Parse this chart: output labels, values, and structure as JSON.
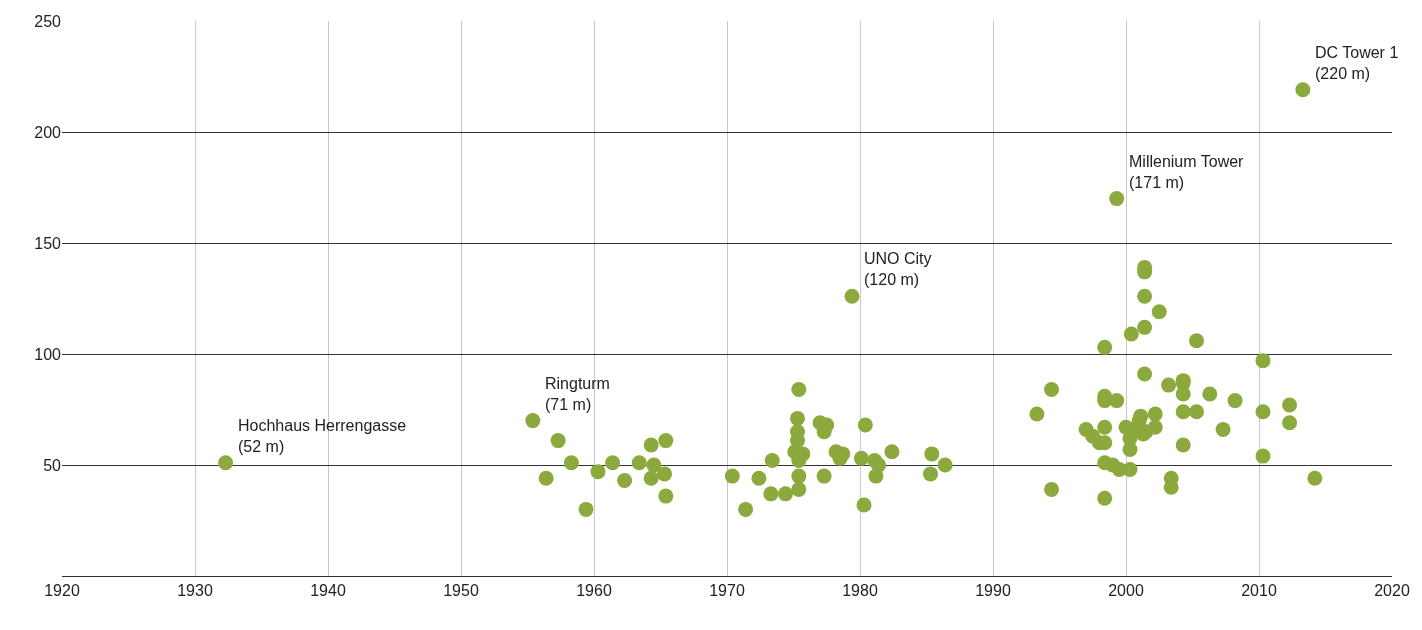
{
  "chart_data": {
    "type": "scatter",
    "color": "#8ba93c",
    "marker": "circle",
    "grid": true,
    "xlim": [
      1920,
      2020
    ],
    "xticks": [
      1920,
      1930,
      1940,
      1950,
      1960,
      1970,
      1980,
      1990,
      2000,
      2010,
      2020
    ],
    "ylim": [
      0,
      250
    ],
    "yticks": [
      50,
      100,
      150,
      200,
      250
    ],
    "x": [
      1932.3,
      1955.4,
      1956.4,
      1957.3,
      1958.3,
      1959.4,
      1960.3,
      1961.4,
      1962.3,
      1963.4,
      1964.3,
      1964.3,
      1964.5,
      1965.4,
      1965.3,
      1965.4,
      1970.4,
      1971.4,
      1972.4,
      1973.3,
      1973.4,
      1974.4,
      1975.4,
      1975.3,
      1975.3,
      1975.3,
      1975.1,
      1975.7,
      1975.4,
      1975.4,
      1975.4,
      1977.0,
      1977.5,
      1977.3,
      1977.3,
      1978.2,
      1978.5,
      1978.7,
      1980.4,
      1980.1,
      1980.3,
      1981.1,
      1981.4,
      1981.2,
      1982.4,
      1985.4,
      1985.3,
      1986.4,
      1979.4,
      1993.3,
      1994.4,
      1994.4,
      1997.0,
      1997.5,
      1998.0,
      1998.4,
      1998.4,
      1998.4,
      1998.4,
      1998.4,
      1998.4,
      1998.4,
      1999.3,
      1999.3,
      1999.0,
      1999.5,
      2000.0,
      2000.3,
      2000.3,
      2000.3,
      2000.4,
      2000.8,
      2001.1,
      2001.0,
      2001.3,
      2001.5,
      2002.2,
      2002.2,
      2001.4,
      2001.4,
      2001.4,
      2001.4,
      2001.4,
      2002.5,
      2003.2,
      2003.4,
      2003.4,
      2004.3,
      2004.3,
      2004.3,
      2004.3,
      2004.3,
      2005.3,
      2005.3,
      2006.3,
      2007.3,
      2008.2,
      2010.3,
      2010.3,
      2010.3,
      2012.3,
      2012.3,
      2014.2,
      2013.3
    ],
    "values": [
      51,
      70,
      44,
      61,
      51,
      30,
      47,
      51,
      43,
      51,
      59,
      44,
      50,
      61,
      46,
      36,
      45,
      30,
      44,
      37,
      52,
      37,
      84,
      71,
      65,
      61,
      56,
      55,
      52,
      45,
      39,
      69,
      68,
      65,
      45,
      56,
      53,
      55,
      68,
      53,
      32,
      52,
      50,
      45,
      56,
      55,
      46,
      50,
      126,
      73,
      84,
      39,
      66,
      63,
      60,
      103,
      81,
      79,
      67,
      60,
      51,
      35,
      79,
      170,
      50,
      48,
      67,
      62,
      57,
      48,
      109,
      67,
      72,
      70,
      64,
      65,
      67,
      73,
      91,
      112,
      126,
      137,
      139,
      119,
      86,
      44,
      40,
      88,
      87,
      82,
      74,
      59,
      106,
      74,
      82,
      66,
      79,
      97,
      74,
      54,
      77,
      69,
      44,
      219
    ],
    "annotations": [
      {
        "text": "Hochhaus Herrengasse\n(52 m)",
        "x": 1932.3,
        "y": 51
      },
      {
        "text": "Ringturm\n(71 m)",
        "x": 1955.4,
        "y": 70
      },
      {
        "text": "UNO City\n(120 m)",
        "x": 1979.4,
        "y": 126
      },
      {
        "text": "Millenium Tower\n(171 m)",
        "x": 1999.3,
        "y": 170
      },
      {
        "text": "DC Tower 1\n(220 m)",
        "x": 2013.3,
        "y": 219
      }
    ]
  }
}
